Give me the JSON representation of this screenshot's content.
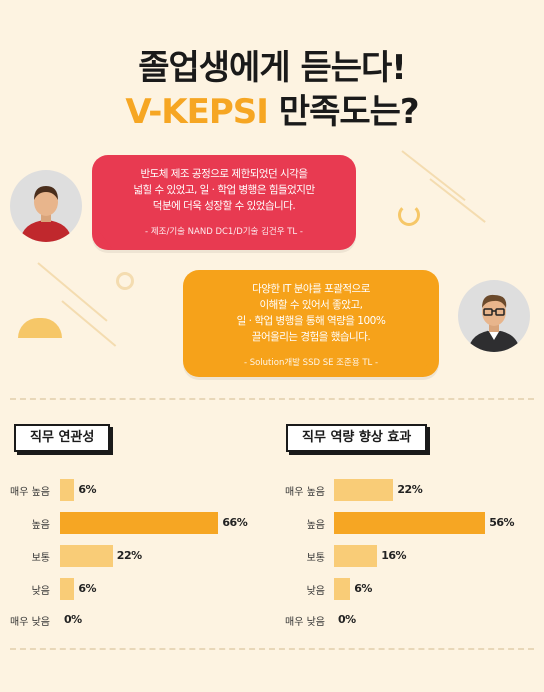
{
  "title": {
    "line1": "졸업생에게 듣는다!",
    "line2_accent": "V-KEPSI",
    "line2_rest": " 만족도는?"
  },
  "testimonials": [
    {
      "lines": [
        "반도체 제조 공정으로 제한되었던 시각을",
        "넓힐 수 있었고, 일 · 학업 병행은 힘들었지만",
        "덕분에 더욱 성장할 수 있었습니다."
      ],
      "author": "- 제조/기술 NAND DC1/D기술 김건우 TL -",
      "color": "#e83a51"
    },
    {
      "lines": [
        "다양한 IT 분야를 포괄적으로",
        "이해할 수 있어서 좋았고,",
        "일 · 학업 병행을 통해 역량을 100%",
        "끌어올리는 경험을 했습니다."
      ],
      "author": "- Solution개발 SSD SE 조준용 TL -",
      "color": "#f6a21a"
    }
  ],
  "chart_data": [
    {
      "type": "bar",
      "title": "직무 연관성",
      "categories": [
        "매우 높음",
        "높음",
        "보통",
        "낮음",
        "매우 낮음"
      ],
      "values": [
        6,
        66,
        22,
        6,
        0
      ],
      "value_labels": [
        "6%",
        "66%",
        "22%",
        "6%",
        "0%"
      ],
      "colors": {
        "highlight": "#f6a623",
        "normal": "#f9cc77"
      }
    },
    {
      "type": "bar",
      "title": "직무 역량 향상 효과",
      "categories": [
        "매우 높음",
        "높음",
        "보통",
        "낮음",
        "매우 낮음"
      ],
      "values": [
        22,
        56,
        16,
        6,
        0
      ],
      "value_labels": [
        "22%",
        "56%",
        "16%",
        "6%",
        "0%"
      ],
      "colors": {
        "highlight": "#f6a623",
        "normal": "#f9cc77"
      }
    }
  ]
}
